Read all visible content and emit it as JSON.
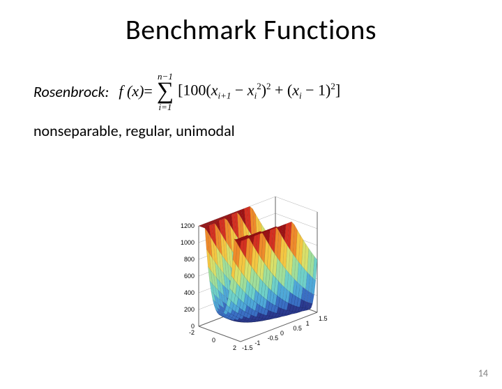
{
  "title": "Benchmark Functions",
  "function_name": "Rosenbrock:",
  "formula": {
    "lhs": "f (x)",
    "eq": " = ",
    "sum_top": "n−1",
    "sum_bot": "i=1",
    "body_prefix": "[100(",
    "xi1": "x",
    "xi1_sub": "i+1",
    "minus": " − ",
    "xi2": "x",
    "xi2_sub": "i",
    "xi2_sup": "2",
    "close1": ")",
    "sq1": "2",
    "plus": " + (",
    "xi3": "x",
    "xi3_sub": "i",
    "minus1": " − 1)",
    "sq2": "2",
    "close_bracket": "]"
  },
  "properties": "nonseparable, regular, unimodal",
  "page_number": "14",
  "chart": {
    "type": "surface3d",
    "z_ticks": [
      "0",
      "200",
      "400",
      "600",
      "800",
      "1000",
      "1200"
    ],
    "x_ticks": [
      "-2",
      "0",
      "2"
    ],
    "y_ticks": [
      "-1.5",
      "-1",
      "-0.5",
      "0",
      "0.5",
      "1",
      "1.5"
    ],
    "colormap": [
      "#2b3a8f",
      "#3a6fc4",
      "#4fa8d8",
      "#6fd0c8",
      "#a0de9a",
      "#d8e06a",
      "#f4c642",
      "#ef8a2b",
      "#d43021",
      "#9c1214"
    ],
    "tick_fontsize": 9,
    "tick_color": "#000000",
    "grid_color": "#b0b0b0",
    "box_color": "#606060",
    "background_color": "#ffffff"
  }
}
